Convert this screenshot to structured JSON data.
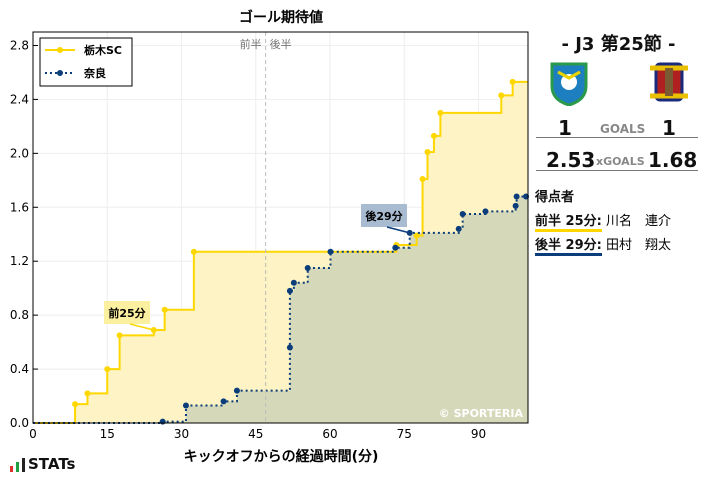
{
  "chart_data": {
    "type": "line",
    "title": "ゴール期待値",
    "xlabel": "キックオフからの経過時間(分)",
    "ylabel": "",
    "xlim": [
      0,
      100
    ],
    "ylim": [
      0,
      2.9
    ],
    "xticks": [
      0,
      15,
      30,
      45,
      60,
      75,
      90
    ],
    "yticks": [
      0.0,
      0.4,
      0.8,
      1.2,
      1.6,
      2.0,
      2.4,
      2.8
    ],
    "halftime_minute": 47,
    "half_labels": [
      "前半",
      "後半"
    ],
    "legend_position": "top-left",
    "watermark": "© SPORTERIA",
    "series": [
      {
        "name": "栃木SC",
        "color": "#FFD700",
        "fill": "#FDF3C4",
        "style": "solid",
        "x": [
          8.5,
          11,
          15,
          17.5,
          24.4,
          26.6,
          32.5,
          73.4,
          77.5,
          78.7,
          79.7,
          81,
          82.3,
          94.6,
          96.9
        ],
        "y": [
          0.14,
          0.22,
          0.4,
          0.65,
          0.69,
          0.84,
          1.27,
          1.32,
          1.39,
          1.81,
          2.01,
          2.13,
          2.3,
          2.43,
          2.53
        ]
      },
      {
        "name": "奈良",
        "color": "#0A3D7A",
        "fill": "#D3D6B8",
        "style": "dotted",
        "x": [
          26.2,
          30.9,
          38.5,
          41.2,
          51.9,
          51.9,
          52.7,
          55.5,
          60.1,
          73.2,
          76.1,
          86,
          86.8,
          91.4,
          97.5,
          97.7,
          99.6
        ],
        "y": [
          0.01,
          0.13,
          0.16,
          0.24,
          0.56,
          0.98,
          1.04,
          1.15,
          1.27,
          1.3,
          1.41,
          1.44,
          1.55,
          1.57,
          1.61,
          1.68,
          1.68
        ]
      }
    ],
    "annotations": [
      {
        "text": "前25分",
        "minute": 24.4,
        "value": 0.69,
        "color": "#FBEFA0"
      },
      {
        "text": "後29分",
        "minute": 76.1,
        "value": 1.41,
        "color": "#A9BBD1"
      }
    ]
  },
  "match": {
    "title": "- J3 第25節 -",
    "home_goals": "1",
    "away_goals": "1",
    "goals_label": "GOALS",
    "home_xg": "2.53",
    "away_xg": "1.68",
    "xg_label": "xGOALS"
  },
  "scorers": {
    "heading": "得点者",
    "items": [
      {
        "time": "前半 25分:",
        "name": "川名　連介",
        "color": "#FFD700"
      },
      {
        "time": "後半 29分:",
        "name": "田村　翔太",
        "color": "#0A3D7A"
      }
    ]
  },
  "brand": "STATs"
}
